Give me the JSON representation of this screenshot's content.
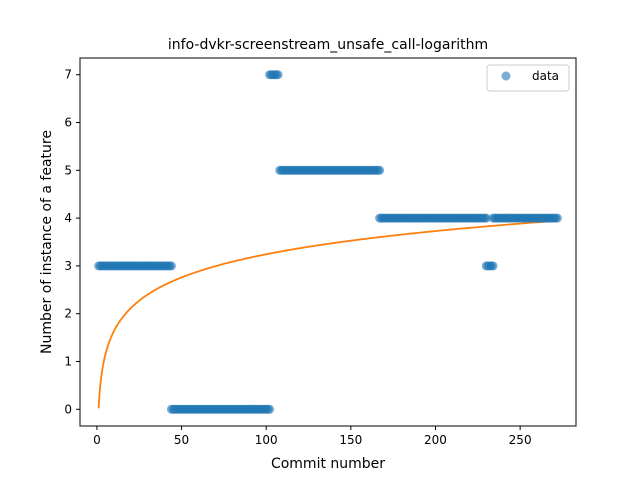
{
  "chart_data": {
    "type": "scatter",
    "title": "info-dvkr-screenstream_unsafe_call-logarithm",
    "xlabel": "Commit number",
    "ylabel": "Number of instance of a feature",
    "xlim": [
      -10,
      283
    ],
    "ylim": [
      -0.35,
      7.35
    ],
    "xticks": [
      0,
      50,
      100,
      150,
      200,
      250
    ],
    "yticks": [
      0,
      1,
      2,
      3,
      4,
      5,
      6,
      7
    ],
    "grid": false,
    "legend": {
      "placement": "top-right",
      "entries": [
        "data"
      ]
    },
    "scatter_segments": [
      {
        "x_start": 1,
        "x_end": 44,
        "y": 3
      },
      {
        "x_start": 44,
        "x_end": 102,
        "y": 0
      },
      {
        "x_start": 102,
        "x_end": 107,
        "y": 7
      },
      {
        "x_start": 108,
        "x_end": 167,
        "y": 5
      },
      {
        "x_start": 167,
        "x_end": 230,
        "y": 4
      },
      {
        "x_start": 230,
        "x_end": 234,
        "y": 3
      },
      {
        "x_start": 234,
        "x_end": 272,
        "y": 4
      }
    ],
    "fit": {
      "model": "a*ln(x)+b",
      "a": 0.7,
      "b": 0.02,
      "x_start": 1,
      "x_end": 272
    },
    "series": [
      {
        "name": "data",
        "kind": "scatter",
        "color": "#1f77b4"
      },
      {
        "kind": "line",
        "color": "#ff7f0e"
      }
    ]
  }
}
